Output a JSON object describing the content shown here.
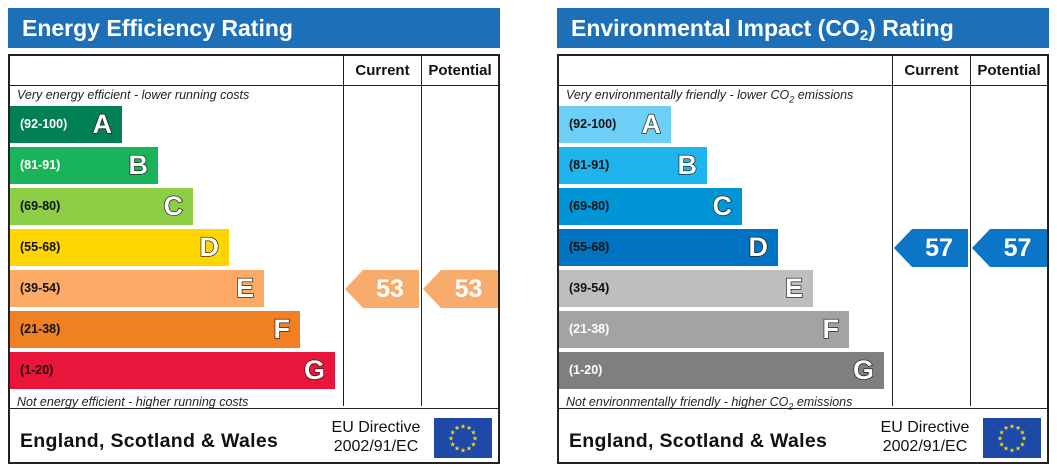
{
  "chart_data": [
    {
      "type": "bar",
      "title": "Energy Efficiency Rating",
      "columns": [
        "Current",
        "Potential"
      ],
      "top_note": "Very energy efficient - lower running costs",
      "bottom_note": "Not energy efficient - higher running costs",
      "bands": [
        {
          "letter": "A",
          "range": "(92-100)",
          "color": "#008054",
          "text_color": "#ffffff"
        },
        {
          "letter": "B",
          "range": "(81-91)",
          "color": "#19b459",
          "text_color": "#ffffff"
        },
        {
          "letter": "C",
          "range": "(69-80)",
          "color": "#8dce46",
          "text_color": "#111111"
        },
        {
          "letter": "D",
          "range": "(55-68)",
          "color": "#ffd500",
          "text_color": "#111111"
        },
        {
          "letter": "E",
          "range": "(39-54)",
          "color": "#fcaa65",
          "text_color": "#111111"
        },
        {
          "letter": "F",
          "range": "(21-38)",
          "color": "#ef8023",
          "text_color": "#111111"
        },
        {
          "letter": "G",
          "range": "(1-20)",
          "color": "#e9153b",
          "text_color": "#111111"
        }
      ],
      "current": {
        "value": "53",
        "band": "E",
        "color": "#f7ac6b"
      },
      "potential": {
        "value": "53",
        "band": "E",
        "color": "#f7ac6b"
      },
      "footer": {
        "region": "England, Scotland & Wales",
        "directive_line1": "EU Directive",
        "directive_line2": "2002/91/EC"
      }
    },
    {
      "type": "bar",
      "title": "Environmental Impact (CO",
      "title_sub": "2",
      "title_suffix": ") Rating",
      "columns": [
        "Current",
        "Potential"
      ],
      "top_note": "Very environmentally friendly - lower CO",
      "top_note_sub": "2",
      "top_note_suffix": " emissions",
      "bottom_note": "Not environmentally friendly - higher CO",
      "bottom_note_sub": "2",
      "bottom_note_suffix": " emissions",
      "bands": [
        {
          "letter": "A",
          "range": "(92-100)",
          "color": "#6ecff6",
          "text_color": "#111111"
        },
        {
          "letter": "B",
          "range": "(81-91)",
          "color": "#1fb5ec",
          "text_color": "#111111"
        },
        {
          "letter": "C",
          "range": "(69-80)",
          "color": "#0096d6",
          "text_color": "#111111"
        },
        {
          "letter": "D",
          "range": "(55-68)",
          "color": "#0073c2",
          "text_color": "#111111"
        },
        {
          "letter": "E",
          "range": "(39-54)",
          "color": "#bebebe",
          "text_color": "#111111"
        },
        {
          "letter": "F",
          "range": "(21-38)",
          "color": "#a3a3a3",
          "text_color": "#ffffff"
        },
        {
          "letter": "G",
          "range": "(1-20)",
          "color": "#7f7f7f",
          "text_color": "#ffffff"
        }
      ],
      "current": {
        "value": "57",
        "band": "D",
        "color": "#0b76c5"
      },
      "potential": {
        "value": "57",
        "band": "D",
        "color": "#0b76c5"
      },
      "footer": {
        "region": "England, Scotland & Wales",
        "directive_line1": "EU Directive",
        "directive_line2": "2002/91/EC"
      }
    }
  ]
}
